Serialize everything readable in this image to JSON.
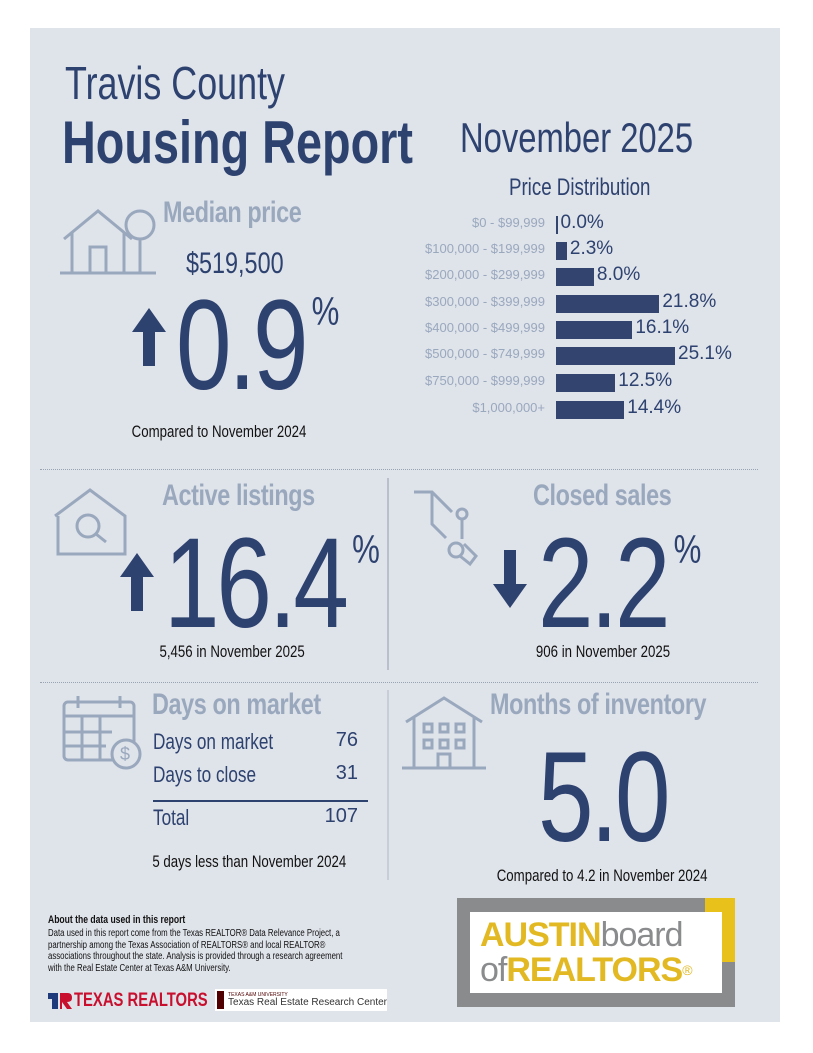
{
  "header": {
    "county": "Travis County",
    "title": "Housing Report",
    "period": "November 2025"
  },
  "median_price": {
    "label": "Median price",
    "value": "$519,500",
    "change": "0.9",
    "unit": "%",
    "direction": "up",
    "caption": "Compared to November 2024",
    "icon": "house-tree-icon"
  },
  "chart_data": {
    "type": "bar",
    "orientation": "horizontal",
    "title": "Price Distribution",
    "categories": [
      "$0 - $99,999",
      "$100,000 - $199,999",
      "$200,000 - $299,999",
      "$300,000 - $399,999",
      "$400,000 - $499,999",
      "$500,000 - $749,999",
      "$750,000 - $999,999",
      "$1,000,000+"
    ],
    "values": [
      0.0,
      2.3,
      8.0,
      21.8,
      16.1,
      25.1,
      12.5,
      14.4
    ],
    "labels": [
      "0.0%",
      "2.3%",
      "8.0%",
      "21.8%",
      "16.1%",
      "25.1%",
      "12.5%",
      "14.4%"
    ],
    "color": "#33446f"
  },
  "active_listings": {
    "label": "Active listings",
    "change": "16.4",
    "unit": "%",
    "direction": "up",
    "caption": "5,456 in November 2025",
    "icon": "house-search-icon"
  },
  "closed_sales": {
    "label": "Closed sales",
    "change": "2.2",
    "unit": "%",
    "direction": "down",
    "caption": "906 in November 2025",
    "icon": "hand-keys-icon"
  },
  "days_on_market": {
    "label": "Days on market",
    "rows": [
      {
        "label": "Days on market",
        "value": "76"
      },
      {
        "label": "Days to close",
        "value": "31"
      }
    ],
    "total": {
      "label": "Total",
      "value": "107"
    },
    "caption": "5 days less than November 2024",
    "icon": "calendar-dollar-icon"
  },
  "months_inventory": {
    "label": "Months of inventory",
    "value": "5.0",
    "caption": "Compared to 4.2 in November 2024",
    "icon": "apartment-building-icon"
  },
  "footer": {
    "about_title": "About the data used in this report",
    "about_lines": [
      "Data used in this report come from the Texas REALTOR® Data Relevance Project, a",
      "partnership among the Texas Association of REALTORS® and local REALTOR®",
      "associations throughout the state. Analysis is provided through a research agreement",
      "with the Real Estate Center at Texas A&M University."
    ],
    "texas_realtors": "TEXAS REALTORS",
    "tamu_small": "TEXAS A&M UNIVERSITY",
    "tamu_center": "Texas Real Estate Research Center",
    "abor_logo": {
      "line1a": "AUSTIN",
      "line1b": "board",
      "line2a": "of",
      "line2b": "REALTORS",
      "reg": "®"
    }
  },
  "colors": {
    "navy": "#2e4270",
    "gray": "#9aa8be",
    "background": "#dfe3ea",
    "yellow": "#e8c11a"
  }
}
